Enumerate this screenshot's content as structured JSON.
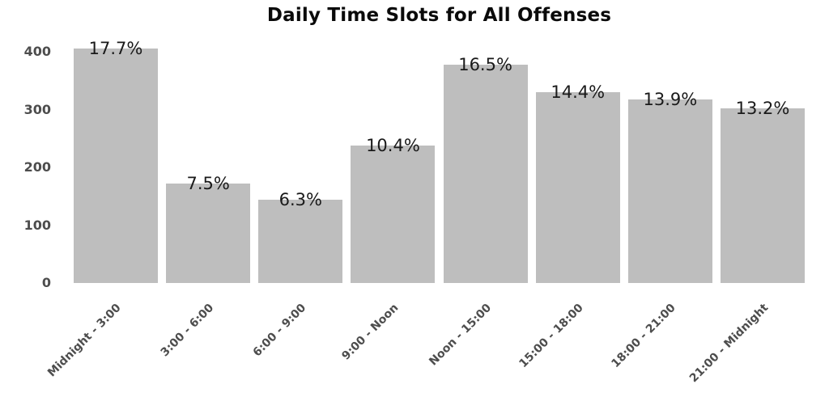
{
  "chart_data": {
    "type": "bar",
    "title": "Daily Time Slots for All Offenses",
    "categories": [
      "Midnight - 3:00",
      "3:00 - 6:00",
      "6:00 - 9:00",
      "9:00 - Noon",
      "Noon - 15:00",
      "15:00 - 18:00",
      "18:00 - 21:00",
      "21:00 - Midnight"
    ],
    "values": [
      405,
      172,
      144,
      238,
      378,
      330,
      318,
      302
    ],
    "bar_labels": [
      "17.7%",
      "7.5%",
      "6.3%",
      "10.4%",
      "16.5%",
      "14.4%",
      "13.9%",
      "13.2%"
    ],
    "xlabel": "",
    "ylabel": "",
    "ylim": [
      0,
      400
    ],
    "yticks": [
      0,
      100,
      200,
      300,
      400
    ],
    "grid": false,
    "legend_position": "none",
    "axes_lines": false,
    "colors": {
      "bar": "#bebebe",
      "axis_text": "#4d4d4d",
      "value_label_text": "#1a1a1a",
      "title_text": "#0a0a0a",
      "background": "#ffffff"
    }
  }
}
